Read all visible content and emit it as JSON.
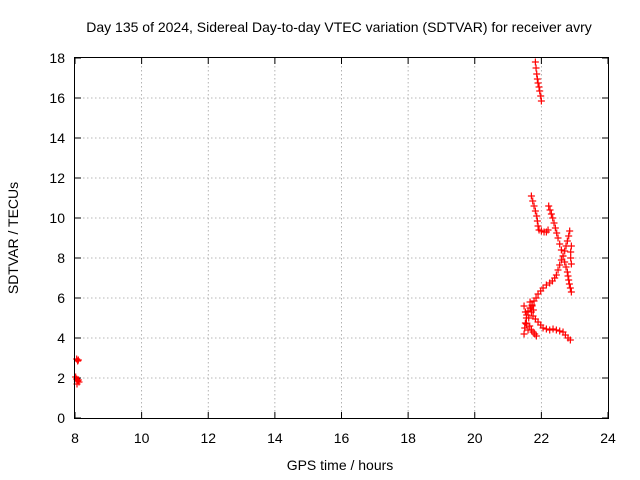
{
  "chart_data": {
    "type": "scatter",
    "title": "Day 135 of 2024, Sidereal Day-to-day VTEC variation (SDTVAR) for receiver avry",
    "xlabel": "GPS time / hours",
    "ylabel": "SDTVAR / TECUs",
    "xlim": [
      8,
      24
    ],
    "ylim": [
      0,
      18
    ],
    "xticks": [
      "8",
      "10",
      "12",
      "14",
      "16",
      "18",
      "20",
      "22",
      "24"
    ],
    "yticks": [
      "0",
      "2",
      "4",
      "6",
      "8",
      "10",
      "12",
      "14",
      "16",
      "18"
    ],
    "grid": true,
    "marker": "+",
    "marker_color": "#ff0000",
    "series": [
      {
        "name": "SDTVAR",
        "points": [
          [
            8.05,
            2.95
          ],
          [
            8.08,
            2.85
          ],
          [
            8.1,
            2.9
          ],
          [
            8.02,
            2.05
          ],
          [
            8.05,
            1.95
          ],
          [
            8.07,
            1.85
          ],
          [
            8.1,
            1.9
          ],
          [
            8.12,
            1.8
          ],
          [
            8.06,
            1.7
          ],
          [
            21.82,
            17.8
          ],
          [
            21.84,
            17.5
          ],
          [
            21.86,
            17.2
          ],
          [
            21.88,
            16.95
          ],
          [
            21.9,
            16.75
          ],
          [
            21.93,
            16.55
          ],
          [
            21.95,
            16.35
          ],
          [
            21.98,
            16.1
          ],
          [
            22.0,
            15.85
          ],
          [
            21.7,
            11.1
          ],
          [
            21.74,
            10.85
          ],
          [
            21.78,
            10.6
          ],
          [
            21.82,
            10.35
          ],
          [
            21.86,
            10.1
          ],
          [
            21.88,
            9.85
          ],
          [
            21.9,
            9.6
          ],
          [
            21.93,
            9.4
          ],
          [
            22.0,
            9.35
          ],
          [
            22.08,
            9.3
          ],
          [
            22.15,
            9.3
          ],
          [
            22.2,
            9.4
          ],
          [
            22.22,
            10.6
          ],
          [
            22.26,
            10.4
          ],
          [
            22.3,
            10.2
          ],
          [
            22.34,
            10.0
          ],
          [
            22.38,
            9.75
          ],
          [
            22.42,
            9.5
          ],
          [
            22.46,
            9.25
          ],
          [
            22.5,
            9.0
          ],
          [
            22.55,
            8.7
          ],
          [
            22.6,
            8.4
          ],
          [
            22.65,
            8.1
          ],
          [
            22.7,
            7.8
          ],
          [
            22.74,
            7.55
          ],
          [
            22.78,
            7.3
          ],
          [
            22.8,
            7.1
          ],
          [
            22.82,
            6.9
          ],
          [
            22.84,
            6.7
          ],
          [
            22.87,
            6.5
          ],
          [
            22.9,
            6.3
          ],
          [
            22.85,
            9.35
          ],
          [
            22.82,
            9.1
          ],
          [
            22.78,
            8.85
          ],
          [
            22.74,
            8.6
          ],
          [
            22.7,
            8.35
          ],
          [
            22.65,
            8.1
          ],
          [
            22.6,
            7.9
          ],
          [
            22.55,
            7.65
          ],
          [
            22.5,
            7.4
          ],
          [
            22.45,
            7.15
          ],
          [
            22.4,
            7.0
          ],
          [
            22.33,
            6.85
          ],
          [
            22.25,
            6.75
          ],
          [
            22.15,
            6.65
          ],
          [
            22.05,
            6.5
          ],
          [
            21.98,
            6.35
          ],
          [
            21.9,
            6.2
          ],
          [
            21.84,
            6.0
          ],
          [
            21.78,
            5.85
          ],
          [
            21.72,
            5.65
          ],
          [
            21.66,
            5.5
          ],
          [
            21.6,
            5.35
          ],
          [
            22.9,
            8.6
          ],
          [
            22.88,
            8.3
          ],
          [
            22.88,
            8.0
          ],
          [
            22.9,
            7.7
          ],
          [
            21.48,
            5.6
          ],
          [
            21.52,
            5.3
          ],
          [
            21.55,
            5.0
          ],
          [
            21.55,
            4.7
          ],
          [
            21.5,
            4.5
          ],
          [
            21.48,
            4.2
          ],
          [
            21.52,
            4.75
          ],
          [
            21.56,
            5.15
          ],
          [
            21.62,
            5.0
          ],
          [
            21.65,
            4.6
          ],
          [
            21.6,
            4.4
          ],
          [
            21.7,
            5.3
          ],
          [
            21.75,
            5.1
          ],
          [
            21.82,
            4.95
          ],
          [
            21.9,
            4.8
          ],
          [
            21.98,
            4.65
          ],
          [
            22.05,
            4.5
          ],
          [
            22.15,
            4.45
          ],
          [
            22.25,
            4.4
          ],
          [
            22.35,
            4.45
          ],
          [
            22.45,
            4.4
          ],
          [
            22.55,
            4.35
          ],
          [
            22.65,
            4.3
          ],
          [
            22.72,
            4.15
          ],
          [
            22.8,
            4.0
          ],
          [
            22.87,
            3.9
          ],
          [
            21.7,
            4.4
          ],
          [
            21.75,
            4.3
          ],
          [
            21.8,
            4.2
          ],
          [
            21.85,
            4.1
          ],
          [
            21.66,
            5.8
          ],
          [
            21.72,
            5.6
          ],
          [
            21.68,
            5.5
          ],
          [
            21.76,
            5.4
          ]
        ]
      }
    ]
  }
}
